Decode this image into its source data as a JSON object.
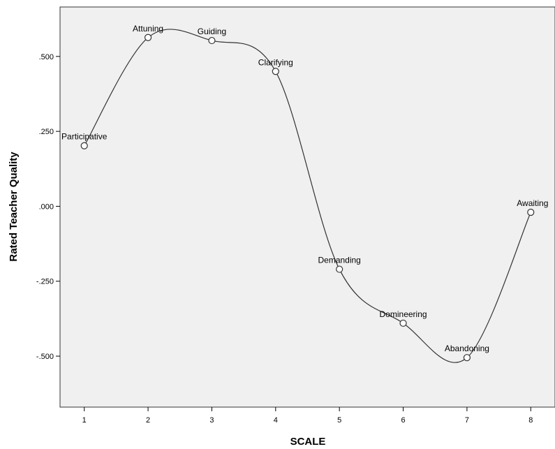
{
  "chart_data": {
    "type": "line",
    "xlabel": "SCALE",
    "ylabel": "Rated Teacher Quality",
    "xlim": [
      0.62,
      8.38
    ],
    "ylim": [
      -0.67,
      0.665
    ],
    "x_ticks": [
      1,
      2,
      3,
      4,
      5,
      6,
      7,
      8
    ],
    "x_tick_labels": [
      "1",
      "2",
      "3",
      "4",
      "5",
      "6",
      "7",
      "8"
    ],
    "y_ticks": [
      0.5,
      0.25,
      0.0,
      -0.25,
      -0.5
    ],
    "y_tick_labels": [
      ".500",
      ".250",
      ".000",
      "-.250",
      "-.500"
    ],
    "points": [
      {
        "x": 1,
        "y": 0.202,
        "label": "Participative"
      },
      {
        "x": 2,
        "y": 0.563,
        "label": "Attuning"
      },
      {
        "x": 3,
        "y": 0.553,
        "label": "Guiding"
      },
      {
        "x": 4,
        "y": 0.45,
        "label": "Clarifying"
      },
      {
        "x": 5,
        "y": -0.21,
        "label": "Demanding"
      },
      {
        "x": 6,
        "y": -0.39,
        "label": "Domineering"
      },
      {
        "x": 7,
        "y": -0.505,
        "label": "Abandoning"
      },
      {
        "x": 8,
        "y": -0.02,
        "label": "Awaiting"
      }
    ],
    "curve": "smooth",
    "grid": false,
    "legend": "none",
    "colors": {
      "plot_background": "#f0f0f0",
      "line": "#333333",
      "marker_fill": "#ffffff",
      "marker_stroke": "#333333"
    }
  }
}
